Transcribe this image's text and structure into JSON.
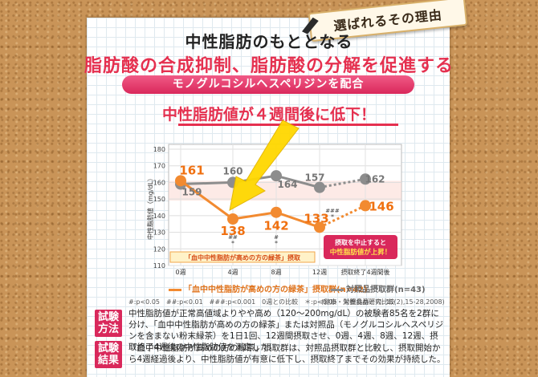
{
  "ribbon": {
    "text": "選ばれるその理由"
  },
  "header": {
    "line1": "中性脂肪のもととなる",
    "line2": "脂肪酸の合成抑制、脂肪酸の分解を促進する",
    "pill": "モノグルコシルヘスペリジンを配合",
    "line3": "中性脂肪値が４週間後に低下！"
  },
  "colors": {
    "orange": "#f28a30",
    "gray": "#8d8d8d",
    "pink": "#d9285b",
    "accent_red": "#e5304f"
  },
  "chart_data": {
    "type": "line",
    "ylabel": "中性脂肪値（mg/dL）",
    "ylim": [
      110,
      180
    ],
    "yticks": [
      "180",
      "170",
      "160",
      "150",
      "140",
      "130",
      "120",
      "110"
    ],
    "categories": [
      "0週",
      "4週",
      "8週",
      "12週",
      "摂取終了4週間後"
    ],
    "series": [
      {
        "name": "「血中中性脂肪が高めの方の緑茶」摂取群(n=42)",
        "values": [
          161,
          138,
          142,
          133,
          146
        ]
      },
      {
        "name": "対照品摂取群(n=43)",
        "values": [
          159,
          160,
          164,
          157,
          162
        ]
      }
    ],
    "labels": {
      "orange": [
        "161",
        "138",
        "142",
        "133",
        "146"
      ],
      "gray": [
        "159",
        "160",
        "164",
        "157",
        "162"
      ]
    },
    "sig_marks": {
      "wk4": "##\n*",
      "wk8": "#\n*",
      "wk12": "###\n*"
    },
    "intake_label": "「血中中性脂肪が高めの方の緑茶」摂取",
    "callout": {
      "line1": "摂取を中止すると",
      "line2": "中性脂肪値が上昇！"
    }
  },
  "legend": {
    "orange": "「血中中性脂肪が高めの方の緑茶」摂取群(n=42)",
    "gray": "対照品摂取群(n=43)"
  },
  "footnotes": {
    "left": "#:p<0.05　##:p<0.01　###:p<0.001　0週との比較　＊:p<0.05　対照品群との比較",
    "right": "(健康・栄養食品研究; 11(2),15-28,2008)"
  },
  "method": {
    "badge": "試験方法",
    "text": "中性脂肪値が正常高値域よりやや高め（120〜200mg/dL）の被験者85名を2群に分け、「血中中性脂肪が高めの方の緑茶」または対照品（モノグルコシルヘスペリジンを含まない粉末緑茶）を1日1回、12週間摂取させ、0週、4週、8週、12週、摂取終了4週後の中性脂肪値を測定した。"
  },
  "result": {
    "badge": "試験結果",
    "text": "「血中中性脂肪が高めの方の緑茶」摂取群は、対照品摂取群と比較し、摂取開始から4週経過後より、中性脂肪値が有意に低下し、摂取終了までその効果が持続した。"
  }
}
